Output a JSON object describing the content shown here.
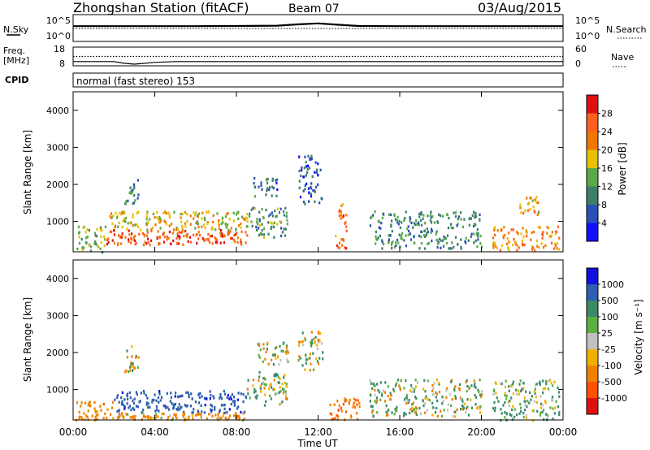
{
  "header": {
    "station": "Zhongshan Station (fitACF)",
    "beam": "Beam 07",
    "date": "03/Aug/2015"
  },
  "top_panels": {
    "nsky_label": "N.Sky",
    "nsearch_label": "N.Search",
    "freq_label_1": "Freq.",
    "freq_label_2": "[MHz]",
    "nave_label": "Nave",
    "cpid_label": "CPID",
    "cpid_text": "normal (fast stereo) 153",
    "noise_ticks_left": [
      "10^5",
      "10^0"
    ],
    "noise_ticks_right": [
      "10^5",
      "10^0"
    ],
    "freq_ticks": [
      "18",
      "8"
    ],
    "nave_ticks": [
      "60",
      "0"
    ]
  },
  "x_axis": {
    "label": "Time UT",
    "ticks": [
      "00:00",
      "04:00",
      "08:00",
      "12:00",
      "16:00",
      "20:00",
      "00:00"
    ]
  },
  "y_axis": {
    "label": "Slant Range [km]",
    "ticks": [
      "1000",
      "2000",
      "3000",
      "4000"
    ]
  },
  "colorbars": {
    "power": {
      "label": "Power [dB]",
      "ticks": [
        "4",
        "8",
        "12",
        "16",
        "20",
        "24",
        "28"
      ],
      "colors": [
        "#1010ff",
        "#2a4fb8",
        "#3d7f6a",
        "#5aa84a",
        "#e8c000",
        "#f07800",
        "#ff6020",
        "#e01010"
      ]
    },
    "velocity": {
      "label": "Velocity [m s⁻¹]",
      "ticks": [
        "1000",
        "500",
        "100",
        "25",
        "-25",
        "-100",
        "-500",
        "-1000"
      ],
      "colors": [
        "#1010e0",
        "#2f5fb0",
        "#3b8a68",
        "#5cb040",
        "#c0c0c0",
        "#f0b000",
        "#f08000",
        "#ff5000",
        "#e01010"
      ]
    }
  },
  "chart_data": [
    {
      "type": "line",
      "title": "",
      "ylabel": "N.Sky / N.Search",
      "x": [
        "00:00",
        "02:00",
        "04:00",
        "06:00",
        "08:00",
        "10:00",
        "11:00",
        "12:00",
        "13:00",
        "14:00",
        "16:00",
        "18:00",
        "20:00",
        "22:00",
        "24:00"
      ],
      "series": [
        {
          "name": "N.Sky",
          "values": [
            1000,
            1000,
            1000,
            1000,
            1100,
            1300,
            2500,
            4000,
            2000,
            1100,
            1000,
            1000,
            1000,
            1000,
            1000
          ]
        },
        {
          "name": "N.Search",
          "values": [
            300,
            300,
            300,
            300,
            300,
            300,
            300,
            300,
            300,
            300,
            300,
            300,
            300,
            300,
            300
          ]
        }
      ]
    },
    {
      "type": "line",
      "title": "",
      "ylabel": "Freq. [MHz] / Nave",
      "x": [
        "00:00",
        "02:00",
        "02:30",
        "03:00",
        "04:00",
        "05:00",
        "06:00",
        "12:00",
        "18:00",
        "24:00"
      ],
      "series": [
        {
          "name": "Freq.",
          "values": [
            10,
            10,
            9,
            8.5,
            9.5,
            10,
            10,
            10,
            10,
            10
          ]
        },
        {
          "name": "Nave",
          "values": [
            30,
            30,
            30,
            30,
            30,
            30,
            30,
            30,
            30,
            30
          ]
        }
      ]
    },
    {
      "type": "heatmap",
      "title": "",
      "xlabel": "Time UT",
      "ylabel": "Slant Range [km]",
      "colorbar_label": "Power [dB]",
      "ylim": [
        180,
        4500
      ],
      "xlim": [
        0,
        24
      ],
      "value_range": [
        0,
        30
      ],
      "regions": [
        {
          "t0": 0.1,
          "t1": 1.6,
          "r0": 200,
          "r1": 900,
          "v": 14
        },
        {
          "t0": 1.6,
          "t1": 8.5,
          "r0": 400,
          "r1": 800,
          "v": 26
        },
        {
          "t0": 1.6,
          "t1": 8.5,
          "r0": 800,
          "r1": 1300,
          "v": 18
        },
        {
          "t0": 2.5,
          "t1": 3.2,
          "r0": 1500,
          "r1": 2200,
          "v": 10
        },
        {
          "t0": 8.5,
          "t1": 10.5,
          "r0": 600,
          "r1": 1400,
          "v": 12
        },
        {
          "t0": 8.8,
          "t1": 10.0,
          "r0": 1700,
          "r1": 2200,
          "v": 8
        },
        {
          "t0": 11.0,
          "t1": 12.2,
          "r0": 1500,
          "r1": 2800,
          "v": 7
        },
        {
          "t0": 12.8,
          "t1": 13.4,
          "r0": 300,
          "r1": 1500,
          "v": 24
        },
        {
          "t0": 14.5,
          "t1": 20.0,
          "r0": 300,
          "r1": 1300,
          "v": 11
        },
        {
          "t0": 20.5,
          "t1": 23.8,
          "r0": 250,
          "r1": 900,
          "v": 22
        },
        {
          "t0": 21.8,
          "t1": 22.8,
          "r0": 1200,
          "r1": 1700,
          "v": 20
        }
      ]
    },
    {
      "type": "heatmap",
      "title": "",
      "xlabel": "Time UT",
      "ylabel": "Slant Range [km]",
      "colorbar_label": "Velocity [m s⁻¹]",
      "ylim": [
        180,
        4500
      ],
      "xlim": [
        0,
        24
      ],
      "value_range": [
        -1000,
        1000
      ],
      "regions": [
        {
          "t0": 0.1,
          "t1": 2.0,
          "r0": 200,
          "r1": 700,
          "v": -300
        },
        {
          "t0": 2.0,
          "t1": 8.5,
          "r0": 400,
          "r1": 1000,
          "v": 800
        },
        {
          "t0": 2.0,
          "t1": 8.5,
          "r0": 200,
          "r1": 400,
          "v": -200
        },
        {
          "t0": 2.5,
          "t1": 3.2,
          "r0": 1500,
          "r1": 2200,
          "v": 0
        },
        {
          "t0": 8.5,
          "t1": 10.5,
          "r0": 600,
          "r1": 1500,
          "v": 80
        },
        {
          "t0": 9.0,
          "t1": 10.5,
          "r0": 1700,
          "r1": 2300,
          "v": 0
        },
        {
          "t0": 11.0,
          "t1": 12.2,
          "r0": 1500,
          "r1": 2600,
          "v": 0
        },
        {
          "t0": 12.5,
          "t1": 14.0,
          "r0": 200,
          "r1": 800,
          "v": -400
        },
        {
          "t0": 14.5,
          "t1": 20.0,
          "r0": 300,
          "r1": 1300,
          "v": 60
        },
        {
          "t0": 20.5,
          "t1": 23.8,
          "r0": 200,
          "r1": 1300,
          "v": 150
        }
      ]
    }
  ]
}
